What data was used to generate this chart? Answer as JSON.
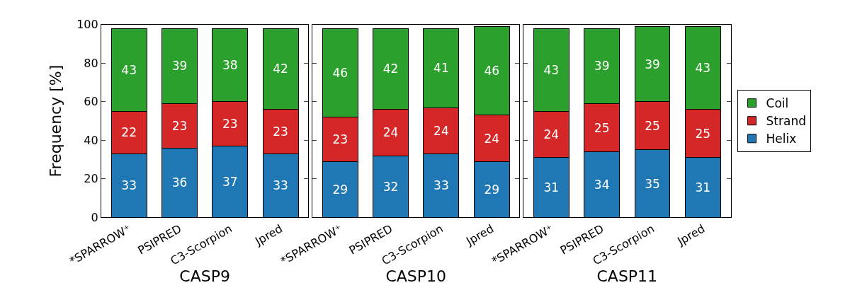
{
  "chart_data": [
    {
      "type": "bar",
      "stacked": true,
      "xlabel": "CASP9",
      "ylabel": "Frequency [%]",
      "categories": [
        "*SPARROW⁺",
        "PSIPRED",
        "C3-Scorpion",
        "Jpred"
      ],
      "ylim": [
        0,
        100
      ],
      "yticks": [
        0,
        20,
        40,
        60,
        80,
        100
      ],
      "legend": "right",
      "data_labels": true,
      "series": [
        {
          "name": "Helix",
          "color": "#1f77b4",
          "values": [
            33,
            36,
            37,
            33
          ]
        },
        {
          "name": "Strand",
          "color": "#d62728",
          "values": [
            22,
            23,
            23,
            23
          ]
        },
        {
          "name": "Coil",
          "color": "#2ca02c",
          "values": [
            43,
            39,
            38,
            42
          ]
        }
      ]
    },
    {
      "type": "bar",
      "stacked": true,
      "xlabel": "CASP10",
      "categories": [
        "*SPARROW⁺",
        "PSIPRED",
        "C3-Scorpion",
        "Jpred"
      ],
      "ylim": [
        0,
        100
      ],
      "yticks": [
        0,
        20,
        40,
        60,
        80,
        100
      ],
      "tick_labels": "x",
      "data_labels": true,
      "series": [
        {
          "color": "#1f77b4",
          "values": [
            29,
            32,
            33,
            29
          ]
        },
        {
          "color": "#d62728",
          "values": [
            23,
            24,
            24,
            24
          ]
        },
        {
          "color": "#2ca02c",
          "values": [
            46,
            42,
            41,
            46
          ]
        }
      ]
    },
    {
      "type": "bar",
      "stacked": true,
      "xlabel": "CASP11",
      "categories": [
        "*SPARROW⁺",
        "PSIPRED",
        "C3-Scorpion",
        "Jpred"
      ],
      "ylim": [
        0,
        100
      ],
      "yticks": [
        0,
        20,
        40,
        60,
        80,
        100
      ],
      "tick_labels": "x",
      "data_labels": true,
      "series": [
        {
          "color": "#1f77b4",
          "values": [
            31,
            34,
            35,
            31
          ]
        },
        {
          "color": "#d62728",
          "values": [
            24,
            25,
            25,
            25
          ]
        },
        {
          "color": "#2ca02c",
          "values": [
            43,
            39,
            39,
            43
          ]
        }
      ]
    }
  ]
}
